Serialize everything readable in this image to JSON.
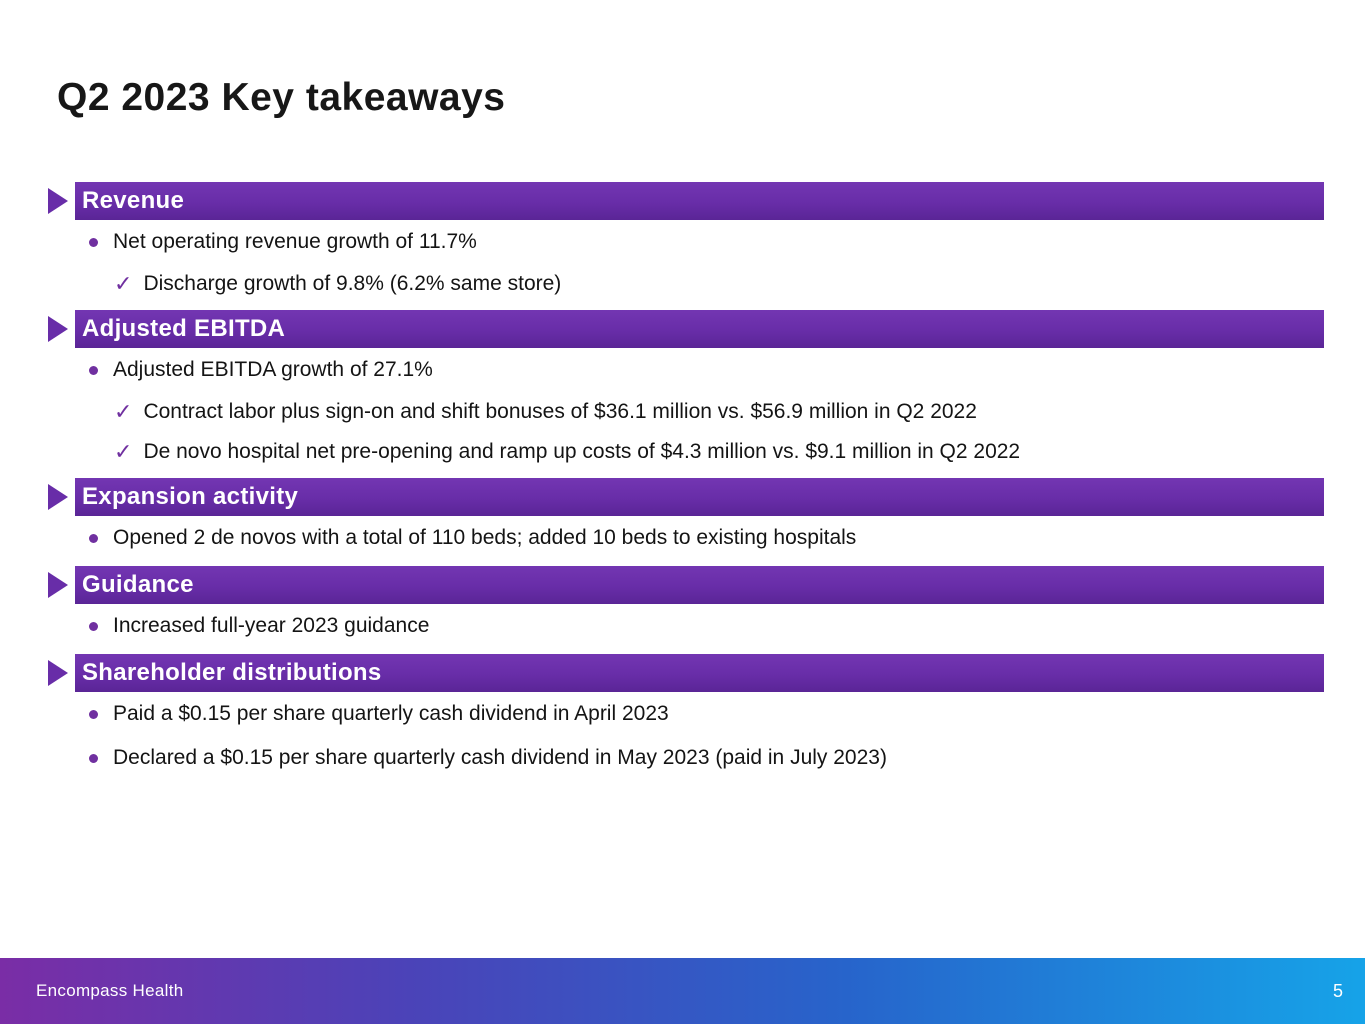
{
  "slide": {
    "title": "Q2 2023 Key takeaways",
    "footer_brand": "Encompass Health",
    "page_number": "5"
  },
  "colors": {
    "bar_purple": "#682da8",
    "bullet_purple": "#7030a0",
    "footer_purple": "#7a2da6",
    "footer_blue": "#16a3e8"
  },
  "icons": {
    "section_marker": "right-triangle",
    "bullet": "dot",
    "check": "✓"
  },
  "sections": [
    {
      "title": "Revenue",
      "items": [
        {
          "type": "bullet",
          "text": "Net operating revenue growth of 11.7%"
        },
        {
          "type": "check",
          "text": "Discharge growth of 9.8% (6.2% same store)"
        }
      ]
    },
    {
      "title": "Adjusted EBITDA",
      "items": [
        {
          "type": "bullet",
          "text": "Adjusted EBITDA growth of 27.1%"
        },
        {
          "type": "check",
          "text": "Contract labor plus sign-on and shift bonuses of $36.1 million vs. $56.9 million in Q2 2022"
        },
        {
          "type": "check",
          "text": "De novo hospital net pre-opening and ramp up costs of $4.3 million vs. $9.1 million in Q2 2022"
        }
      ]
    },
    {
      "title": "Expansion activity",
      "items": [
        {
          "type": "bullet",
          "text": "Opened 2 de novos with a total of 110 beds; added 10 beds to existing hospitals"
        }
      ]
    },
    {
      "title": "Guidance",
      "items": [
        {
          "type": "bullet",
          "text": "Increased full-year 2023 guidance"
        }
      ]
    },
    {
      "title": "Shareholder distributions",
      "items": [
        {
          "type": "bullet",
          "text": "Paid a $0.15 per share quarterly cash dividend in April 2023"
        },
        {
          "type": "bullet",
          "text": "Declared a $0.15 per share quarterly cash dividend in May 2023 (paid in July 2023)"
        }
      ]
    }
  ]
}
